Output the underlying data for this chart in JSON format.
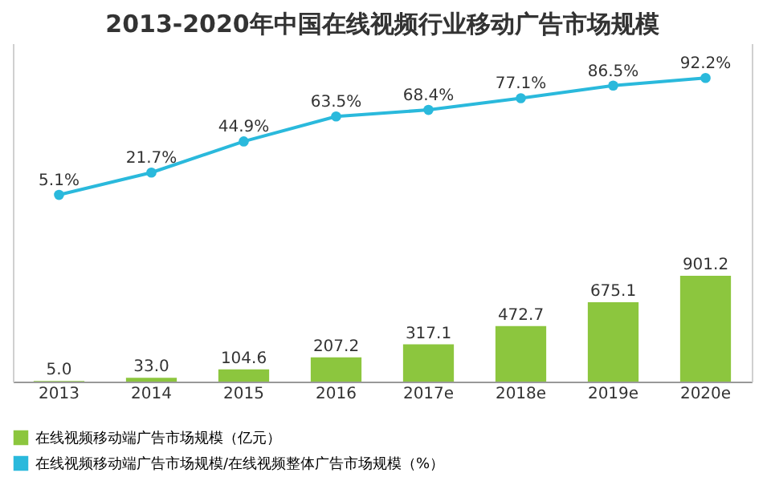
{
  "chart_data": {
    "type": "bar",
    "title": "2013-2020年中国在线视频行业移动广告市场规模",
    "categories": [
      "2013",
      "2014",
      "2015",
      "2016",
      "2017e",
      "2018e",
      "2019e",
      "2020e"
    ],
    "series": [
      {
        "name": "在线视频移动端广告市场规模（亿元）",
        "color": "#8cc63e",
        "values": [
          5.0,
          33.0,
          104.6,
          207.2,
          317.1,
          472.7,
          675.1,
          901.2
        ],
        "value_labels": [
          "5.0",
          "33.0",
          "104.6",
          "207.2",
          "317.1",
          "472.7",
          "675.1",
          "901.2"
        ]
      },
      {
        "name": "在线视频移动端广告市场规模/在线视频整体广告市场规模（%）",
        "color": "#2ab9dc",
        "type": "line",
        "axis": "y2",
        "values": [
          5.1,
          21.7,
          44.9,
          63.5,
          68.4,
          77.1,
          86.5,
          92.2
        ],
        "value_labels": [
          "5.1%",
          "21.7%",
          "44.9%",
          "63.5%",
          "68.4%",
          "77.1%",
          "86.5%",
          "92.2%"
        ]
      }
    ],
    "ylim": [
      0,
      2880
    ],
    "y2lim": [
      -134,
      118
    ],
    "tick_labels": "x",
    "marker": "circle",
    "legend": "bottom"
  }
}
